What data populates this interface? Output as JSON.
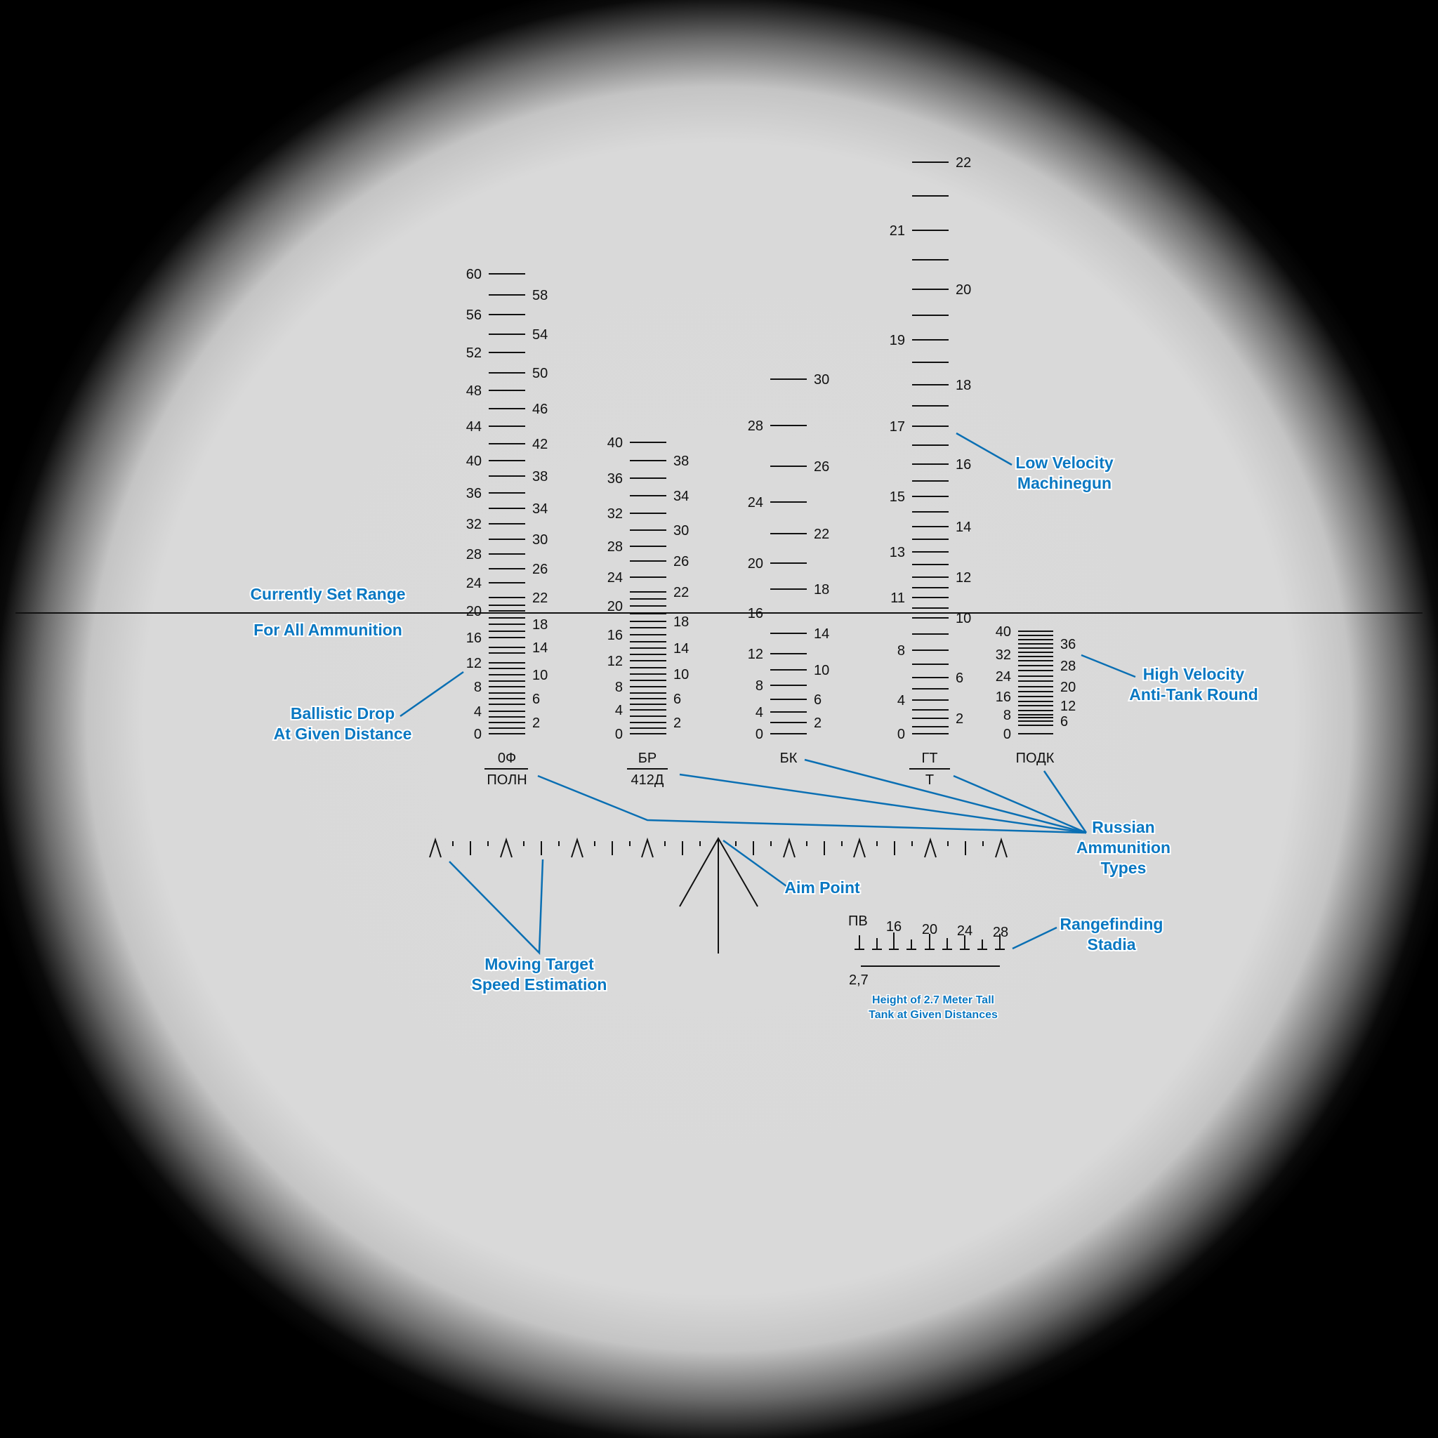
{
  "scales": [
    {
      "name": "of",
      "left_labels": [
        "60",
        "56",
        "52",
        "48",
        "44",
        "40",
        "36",
        "32",
        "28",
        "24",
        "20",
        "16",
        "12",
        "8",
        "4",
        "0"
      ],
      "right_labels": [
        "58",
        "54",
        "50",
        "46",
        "42",
        "38",
        "34",
        "30",
        "26",
        "22",
        "18",
        "14",
        "10",
        "6",
        "2"
      ],
      "ammo_top": "0Ф",
      "ammo_bottom": "ПОЛН"
    },
    {
      "name": "br",
      "left_labels": [
        "40",
        "36",
        "32",
        "28",
        "24",
        "20",
        "16",
        "12",
        "8",
        "4",
        "0"
      ],
      "right_labels": [
        "38",
        "34",
        "30",
        "26",
        "22",
        "18",
        "14",
        "10",
        "6",
        "2"
      ],
      "ammo_top": "БР",
      "ammo_bottom": "412Д"
    },
    {
      "name": "bk",
      "left_labels": [
        "28",
        "24",
        "20",
        "16",
        "12",
        "8",
        "4",
        "0"
      ],
      "right_labels": [
        "30",
        "26",
        "22",
        "18",
        "14",
        "10",
        "6",
        "2"
      ],
      "ammo_top": "БК",
      "ammo_bottom": ""
    },
    {
      "name": "gt",
      "left_labels": [
        "21",
        "19",
        "17",
        "15",
        "13",
        "11",
        "8",
        "4",
        "0"
      ],
      "right_labels": [
        "22",
        "20",
        "18",
        "16",
        "14",
        "12",
        "10",
        "6",
        "2"
      ],
      "ammo_top": "ГТ",
      "ammo_bottom": "Т"
    },
    {
      "name": "podk",
      "left_labels": [
        "40",
        "32",
        "24",
        "16",
        "8",
        "0"
      ],
      "right_labels": [
        "36",
        "28",
        "20",
        "12",
        "6"
      ],
      "ammo_top": "ПОДК",
      "ammo_bottom": ""
    }
  ],
  "stadia": {
    "top_label": "ПВ",
    "bottom_label": "2,7",
    "numbers": [
      "16",
      "20",
      "24",
      "28"
    ]
  },
  "callouts": {
    "currently_set_range": "Currently Set Range",
    "for_all_ammunition": "For All Ammunition",
    "ballistic_drop_1": "Ballistic Drop",
    "ballistic_drop_2": "At Given Distance",
    "low_velocity_1": "Low Velocity",
    "low_velocity_2": "Machinegun",
    "high_velocity_1": "High Velocity",
    "high_velocity_2": "Anti-Tank Round",
    "russian_1": "Russian",
    "russian_2": "Ammunition",
    "russian_3": "Types",
    "aim_point": "Aim Point",
    "moving_target_1": "Moving Target",
    "moving_target_2": "Speed Estimation",
    "rangefinding_1": "Rangefinding",
    "rangefinding_2": "Stadia",
    "tank_height_1": "Height of 2.7 Meter Tall",
    "tank_height_2": "Tank at Given Distances"
  },
  "colors": {
    "callout": "#0a78c2",
    "reticle": "#111111",
    "background": "#d9d9d9"
  }
}
